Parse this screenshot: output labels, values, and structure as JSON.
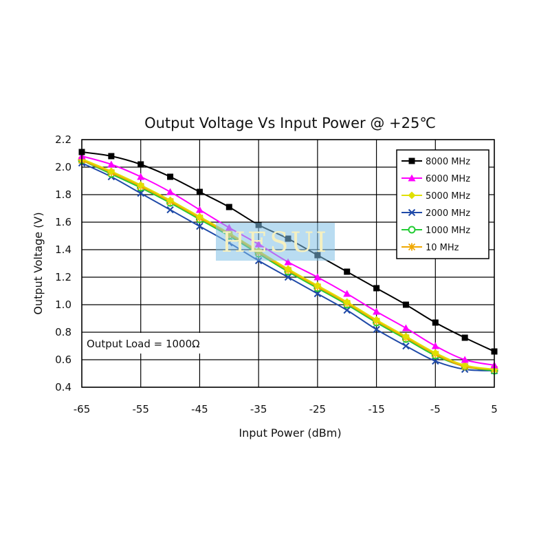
{
  "watermark": "HESUI",
  "chart_data": {
    "type": "line",
    "title": "Output Voltage Vs Input Power @ +25℃",
    "xlabel": "Input Power (dBm)",
    "ylabel": "Output Voltage (V)",
    "annotation": "Output Load = 1000Ω",
    "xlim": [
      -65,
      5
    ],
    "ylim": [
      0.4,
      2.2
    ],
    "xticks": [
      "-65",
      "-55",
      "-45",
      "-35",
      "-25",
      "-15",
      "-5",
      "5"
    ],
    "yticks": [
      "0.4",
      "0.6",
      "0.8",
      "1.0",
      "1.2",
      "1.4",
      "1.6",
      "1.8",
      "2.0",
      "2.2"
    ],
    "grid": true,
    "legend_position": "top-right",
    "x": [
      -65,
      -60,
      -55,
      -50,
      -45,
      -40,
      -35,
      -30,
      -25,
      -20,
      -15,
      -10,
      -5,
      0,
      5
    ],
    "series": [
      {
        "name": "8000 MHz",
        "color": "#000000",
        "marker": "square",
        "values": [
          2.11,
          2.08,
          2.02,
          1.93,
          1.82,
          1.71,
          1.58,
          1.48,
          1.36,
          1.24,
          1.12,
          1.0,
          0.87,
          0.76,
          0.66
        ]
      },
      {
        "name": "6000 MHz",
        "color": "#ff00ff",
        "marker": "triangle",
        "values": [
          2.08,
          2.02,
          1.93,
          1.82,
          1.69,
          1.56,
          1.44,
          1.31,
          1.2,
          1.08,
          0.95,
          0.83,
          0.7,
          0.6,
          0.56
        ]
      },
      {
        "name": "5000 MHz",
        "color": "#e0e000",
        "marker": "diamond",
        "values": [
          2.06,
          1.97,
          1.87,
          1.76,
          1.64,
          1.52,
          1.39,
          1.26,
          1.14,
          1.02,
          0.89,
          0.77,
          0.65,
          0.56,
          0.53
        ]
      },
      {
        "name": "2000 MHz",
        "color": "#1f4aa8",
        "marker": "x",
        "values": [
          2.03,
          1.93,
          1.81,
          1.69,
          1.57,
          1.45,
          1.32,
          1.2,
          1.08,
          0.96,
          0.82,
          0.7,
          0.59,
          0.53,
          0.52
        ]
      },
      {
        "name": "1000 MHz",
        "color": "#22cc33",
        "marker": "circle",
        "values": [
          2.05,
          1.95,
          1.85,
          1.74,
          1.62,
          1.5,
          1.37,
          1.24,
          1.12,
          1.0,
          0.87,
          0.75,
          0.63,
          0.55,
          0.52
        ]
      },
      {
        "name": "10 MHz",
        "color": "#f0a800",
        "marker": "star",
        "values": [
          2.05,
          1.96,
          1.86,
          1.75,
          1.63,
          1.51,
          1.38,
          1.25,
          1.13,
          1.01,
          0.88,
          0.76,
          0.64,
          0.55,
          0.53
        ]
      }
    ]
  }
}
